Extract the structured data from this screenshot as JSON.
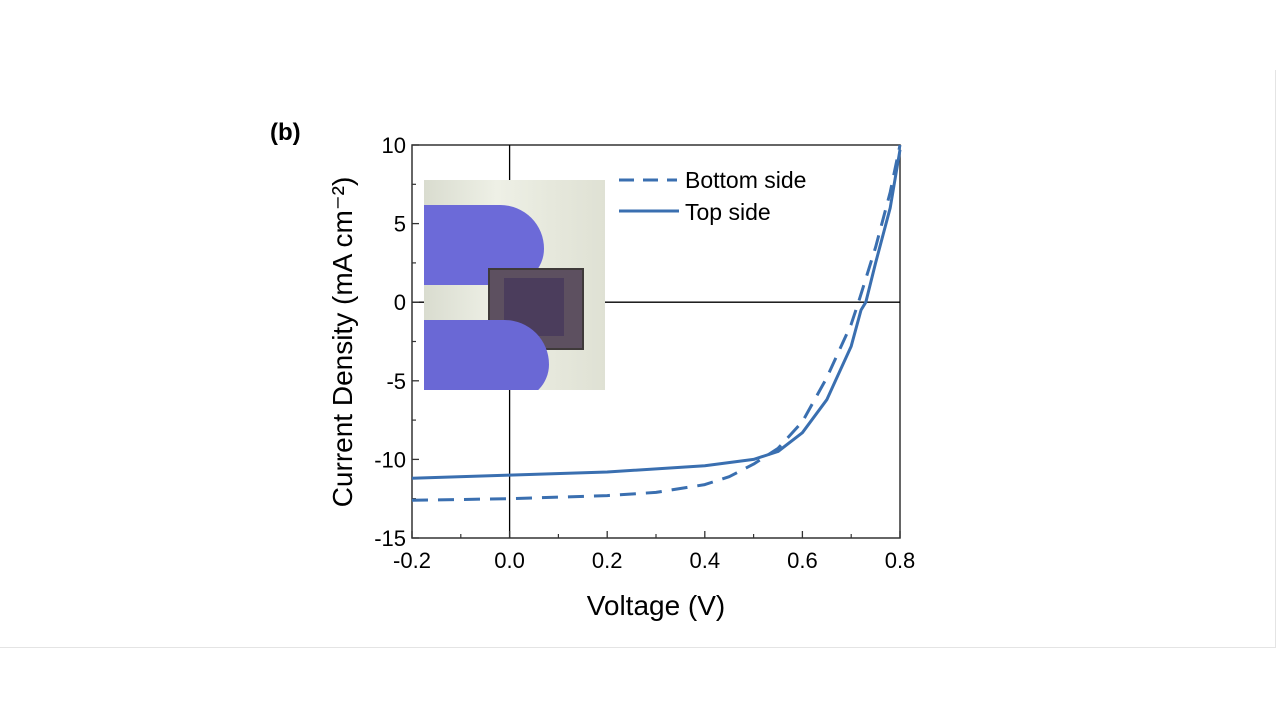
{
  "panel_label": "(b)",
  "inset_image": "photo-of-gloved-fingers-holding-solar-cell",
  "colors": {
    "series": "#3a6fb0",
    "axis": "#000000"
  },
  "chart_data": {
    "type": "line",
    "xlabel": "Voltage (V)",
    "ylabel": "Current Density (mA cm⁻²)",
    "xlim": [
      -0.2,
      0.8
    ],
    "ylim": [
      -15,
      10
    ],
    "xticks": [
      "-0.2",
      "0.0",
      "0.2",
      "0.4",
      "0.6",
      "0.8"
    ],
    "yticks": [
      "10",
      "5",
      "0",
      "-5",
      "-10",
      "-15"
    ],
    "zero_lines": true,
    "legend_position": "top-right",
    "series": [
      {
        "name": "Bottom side",
        "style": "dashed",
        "x": [
          -0.2,
          0.0,
          0.2,
          0.3,
          0.4,
          0.45,
          0.5,
          0.55,
          0.6,
          0.65,
          0.7,
          0.715,
          0.75,
          0.78,
          0.8
        ],
        "y": [
          -12.6,
          -12.5,
          -12.3,
          -12.1,
          -11.6,
          -11.1,
          -10.3,
          -9.3,
          -7.6,
          -4.8,
          -1.4,
          0.0,
          3.5,
          7.0,
          10.0
        ]
      },
      {
        "name": "Top side",
        "style": "solid",
        "x": [
          -0.2,
          0.0,
          0.2,
          0.4,
          0.5,
          0.55,
          0.6,
          0.65,
          0.7,
          0.72,
          0.73,
          0.75,
          0.78,
          0.8
        ],
        "y": [
          -11.2,
          -11.0,
          -10.8,
          -10.4,
          -10.0,
          -9.5,
          -8.3,
          -6.2,
          -2.8,
          -0.5,
          0.0,
          2.5,
          6.0,
          9.7
        ]
      }
    ]
  }
}
